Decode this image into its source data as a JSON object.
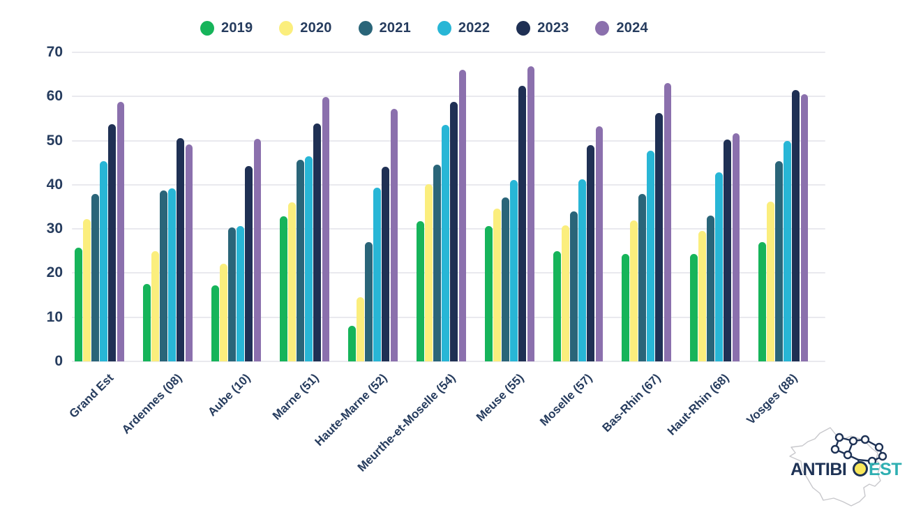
{
  "chart_data": {
    "type": "bar",
    "title": "",
    "xlabel": "",
    "ylabel": "",
    "ylim": [
      0,
      70
    ],
    "yticks": [
      0,
      10,
      20,
      30,
      40,
      50,
      60,
      70
    ],
    "grid": true,
    "legend_position": "top",
    "categories": [
      "Grand Est",
      "Ardennes (08)",
      "Aube (10)",
      "Marne (51)",
      "Haute-Marne (52)",
      "Meurthe-et-Moselle (54)",
      "Meuse (55)",
      "Moselle (57)",
      "Bas-Rhin (67)",
      "Haut-Rhin (68)",
      "Vosges (88)"
    ],
    "series": [
      {
        "name": "2019",
        "color": "#16b45a",
        "values": [
          25.8,
          17.5,
          17.3,
          32.8,
          8.1,
          31.8,
          30.7,
          24.9,
          24.4,
          24.4,
          27.0
        ]
      },
      {
        "name": "2020",
        "color": "#fbee7d",
        "values": [
          32.3,
          24.9,
          22.1,
          36.0,
          14.6,
          40.2,
          34.6,
          30.8,
          32.0,
          29.5,
          36.2
        ]
      },
      {
        "name": "2021",
        "color": "#2a6579",
        "values": [
          38.0,
          38.7,
          30.3,
          45.7,
          27.0,
          44.5,
          37.2,
          33.9,
          37.9,
          33.1,
          45.3
        ]
      },
      {
        "name": "2022",
        "color": "#28b6d6",
        "values": [
          45.4,
          39.2,
          30.6,
          46.5,
          39.4,
          53.5,
          41.1,
          41.2,
          47.8,
          42.8,
          50.0
        ]
      },
      {
        "name": "2023",
        "color": "#1f3054",
        "values": [
          53.8,
          50.5,
          44.3,
          53.9,
          44.1,
          58.8,
          62.4,
          49.0,
          56.2,
          50.2,
          61.5
        ]
      },
      {
        "name": "2024",
        "color": "#8b70ad",
        "values": [
          58.8,
          49.1,
          50.4,
          59.9,
          57.2,
          66.0,
          66.9,
          53.2,
          63.0,
          51.7,
          60.5
        ]
      }
    ]
  },
  "logo": {
    "brand": "ANTIBIO EST",
    "brand_part1": "ANTIBI",
    "brand_part2": "EST",
    "color_primary": "#1e3255",
    "color_secondary": "#2fafb2",
    "color_o_fill": "#f9e75b"
  },
  "colors": {
    "text": "#263c5e",
    "gridline": "#e9e9ee",
    "background": "#ffffff"
  }
}
